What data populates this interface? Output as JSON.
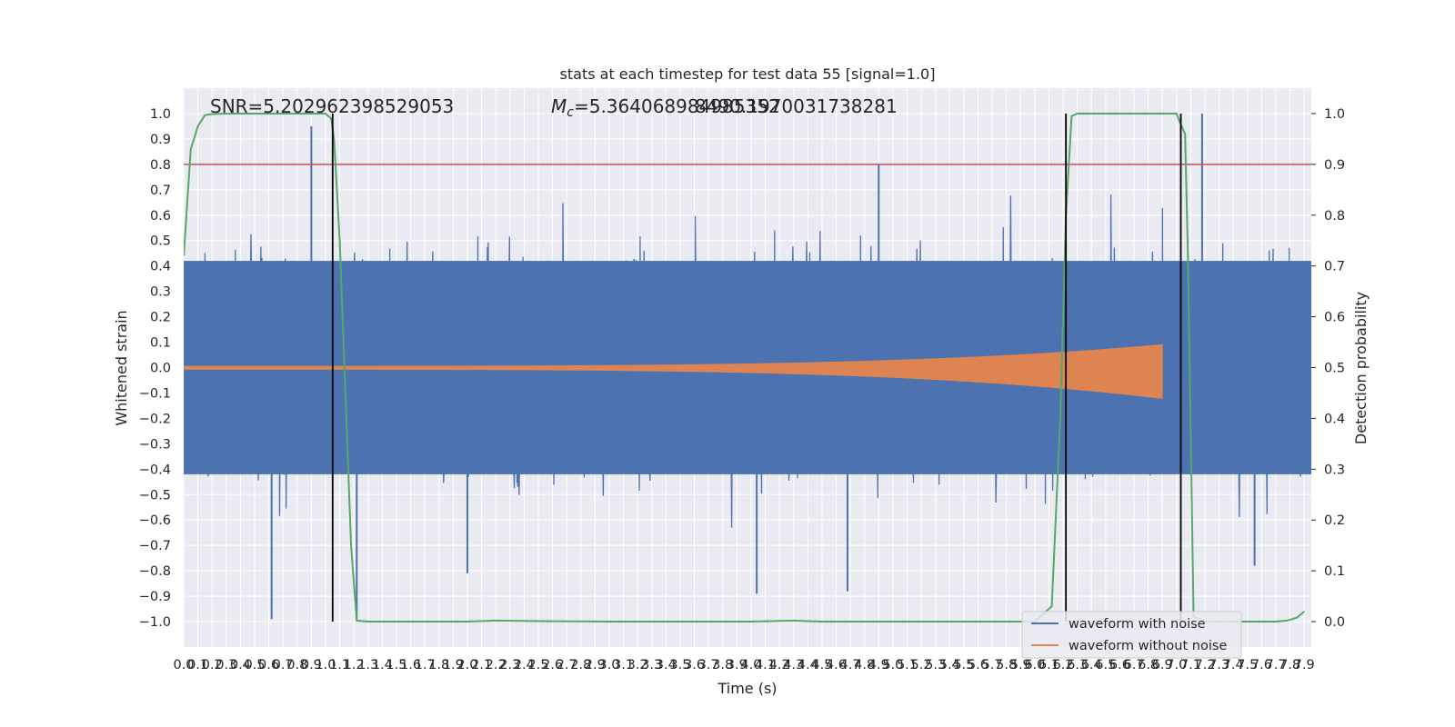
{
  "chart_data": {
    "type": "line",
    "title": "stats at each timestep for test data 55 [signal=1.0]",
    "xlabel": "Time (s)",
    "ylabel": "Whitened strain",
    "y2label": "Detection probability",
    "xlim": [
      0.0,
      7.95
    ],
    "ylim": [
      -1.1,
      1.1
    ],
    "y2lim": [
      -0.05,
      1.05
    ],
    "xticks": [
      0.0,
      0.1,
      0.2,
      0.3,
      0.4,
      0.5,
      0.6,
      0.7,
      0.8,
      0.9,
      1.0,
      1.1,
      1.2,
      1.3,
      1.4,
      1.5,
      1.6,
      1.7,
      1.8,
      1.9,
      2.0,
      2.1,
      2.2,
      2.3,
      2.4,
      2.5,
      2.6,
      2.7,
      2.8,
      2.9,
      3.0,
      3.1,
      3.2,
      3.3,
      3.4,
      3.5,
      3.6,
      3.7,
      3.8,
      3.9,
      4.0,
      4.1,
      4.2,
      4.3,
      4.4,
      4.5,
      4.6,
      4.7,
      4.8,
      4.9,
      5.0,
      5.1,
      5.2,
      5.3,
      5.4,
      5.5,
      5.6,
      5.7,
      5.8,
      5.9,
      6.0,
      6.1,
      6.2,
      6.3,
      6.4,
      6.5,
      6.6,
      6.7,
      6.8,
      6.9,
      7.0,
      7.1,
      7.2,
      7.3,
      7.4,
      7.5,
      7.6,
      7.7,
      7.8,
      7.9
    ],
    "yticks": [
      -1.0,
      -0.9,
      -0.8,
      -0.7,
      -0.6,
      -0.5,
      -0.4,
      -0.3,
      -0.2,
      -0.1,
      0.0,
      0.1,
      0.2,
      0.3,
      0.4,
      0.5,
      0.6,
      0.7,
      0.8,
      0.9,
      1.0
    ],
    "y2ticks": [
      0.0,
      0.1,
      0.2,
      0.3,
      0.4,
      0.5,
      0.6,
      0.7,
      0.8,
      0.9,
      1.0
    ],
    "grid": true,
    "legend_location": "lower-right",
    "annotations": {
      "snr": "SNR=5.202962398529053",
      "mc_prefix": "M",
      "mc_sub": "c",
      "mc_value": "=5.364068984985352",
      "overlap_value": "8490.1970031738281"
    },
    "threshold": {
      "value": 0.8,
      "color": "#c44e52"
    },
    "vertical_markers": [
      1.05,
      6.22,
      7.03
    ],
    "series": [
      {
        "name": "waveform with noise",
        "color": "#4c72b0",
        "kind": "noise",
        "seed": 55,
        "n": 2600,
        "core_amplitude": 0.42,
        "spikes": [
          [
            0.9,
            0.95
          ],
          [
            4.9,
            0.8
          ],
          [
            7.18,
            1.0
          ],
          [
            0.62,
            -0.99
          ],
          [
            4.04,
            -0.89
          ],
          [
            4.68,
            -0.88
          ],
          [
            1.22,
            -0.99
          ],
          [
            2.0,
            -0.81
          ],
          [
            7.55,
            -0.78
          ]
        ]
      },
      {
        "name": "waveform without noise",
        "color": "#dd8452",
        "kind": "chirp",
        "start": 0.0,
        "end": 6.9,
        "min_amp": 0.005,
        "max_amp": 0.09
      },
      {
        "name": "detection probability",
        "color": "#55a868",
        "axis": "right",
        "x": [
          0.0,
          0.05,
          0.1,
          0.15,
          0.2,
          0.3,
          0.5,
          0.8,
          1.0,
          1.04,
          1.06,
          1.1,
          1.14,
          1.18,
          1.22,
          1.3,
          1.5,
          2.0,
          2.2,
          2.5,
          3.0,
          3.5,
          4.0,
          4.3,
          4.4,
          4.5,
          5.0,
          5.5,
          6.0,
          6.12,
          6.18,
          6.22,
          6.26,
          6.3,
          6.4,
          6.6,
          6.8,
          7.0,
          7.02,
          7.06,
          7.08,
          7.12,
          7.2,
          7.4,
          7.6,
          7.7,
          7.78,
          7.85,
          7.9
        ],
        "y": [
          0.72,
          0.93,
          0.975,
          0.997,
          0.999,
          1.0,
          1.0,
          1.0,
          1.0,
          0.99,
          0.95,
          0.75,
          0.45,
          0.15,
          0.002,
          0.0,
          0.0,
          0.0,
          0.002,
          0.001,
          0.0,
          0.0,
          0.0,
          0.002,
          0.001,
          0.0,
          0.0,
          0.0,
          0.0,
          0.03,
          0.4,
          0.8,
          0.995,
          1.0,
          1.0,
          1.0,
          1.0,
          1.0,
          0.985,
          0.96,
          0.72,
          0.01,
          0.0,
          0.0,
          0.0,
          0.0,
          0.002,
          0.008,
          0.02
        ]
      }
    ]
  }
}
